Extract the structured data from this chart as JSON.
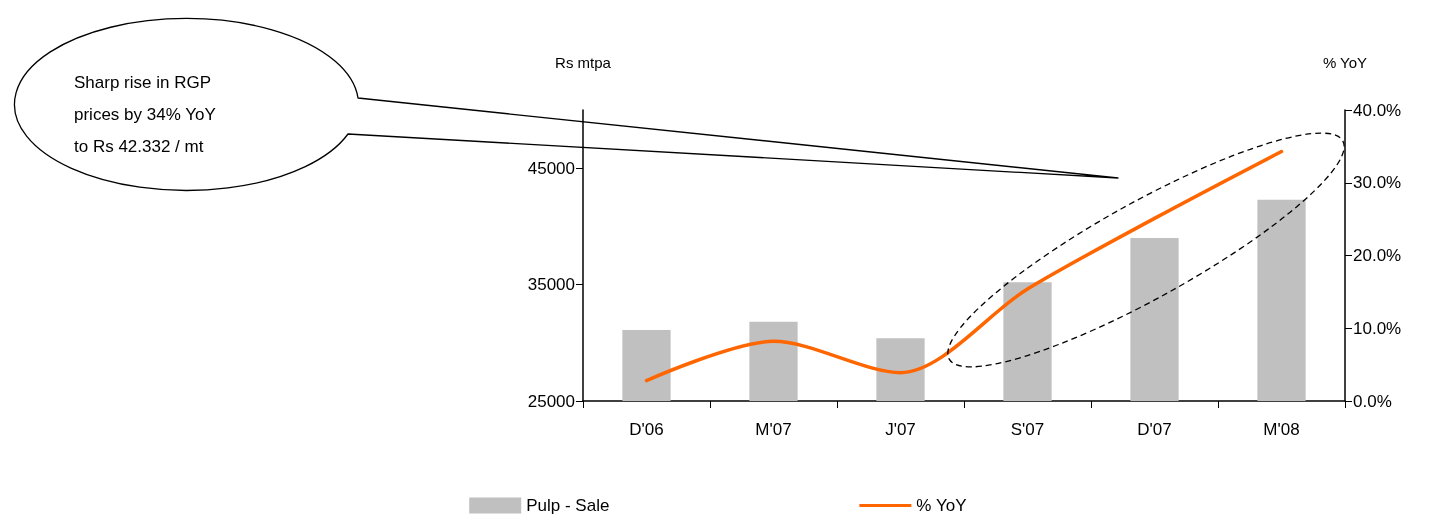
{
  "chart_data": {
    "type": "bar",
    "categories": [
      "D'06",
      "M'07",
      "J'07",
      "S'07",
      "D'07",
      "M'08"
    ],
    "series": [
      {
        "name": "Pulp - Sale",
        "color": "#c0c0c0",
        "values": [
          31100,
          31800,
          30400,
          35200,
          39000,
          42300
        ]
      },
      {
        "name": "% YoY",
        "type": "line",
        "axis": "y2",
        "color": "#ff6600",
        "values": [
          2.8,
          8.2,
          3.9,
          15.4,
          25.1,
          34.3
        ]
      }
    ],
    "ylabel": "Rs mtpa",
    "y2label": "% YoY",
    "ylim": [
      25000,
      50000
    ],
    "yticks": [
      25000,
      35000,
      45000
    ],
    "y2lim": [
      0,
      40
    ],
    "y2ticks": [
      {
        "value": 0,
        "label": "0.0%"
      },
      {
        "value": 10,
        "label": "10.0%"
      },
      {
        "value": 20,
        "label": "20.0%"
      },
      {
        "value": 30,
        "label": "30.0%"
      },
      {
        "value": 40,
        "label": "40.0%"
      }
    ],
    "annotations": [
      "Sharp rise in RGP prices by 34% YoY to Rs 42.332 / mt"
    ],
    "legend": "bottom",
    "grid": false,
    "marker": "none",
    "line_style": "solid"
  }
}
